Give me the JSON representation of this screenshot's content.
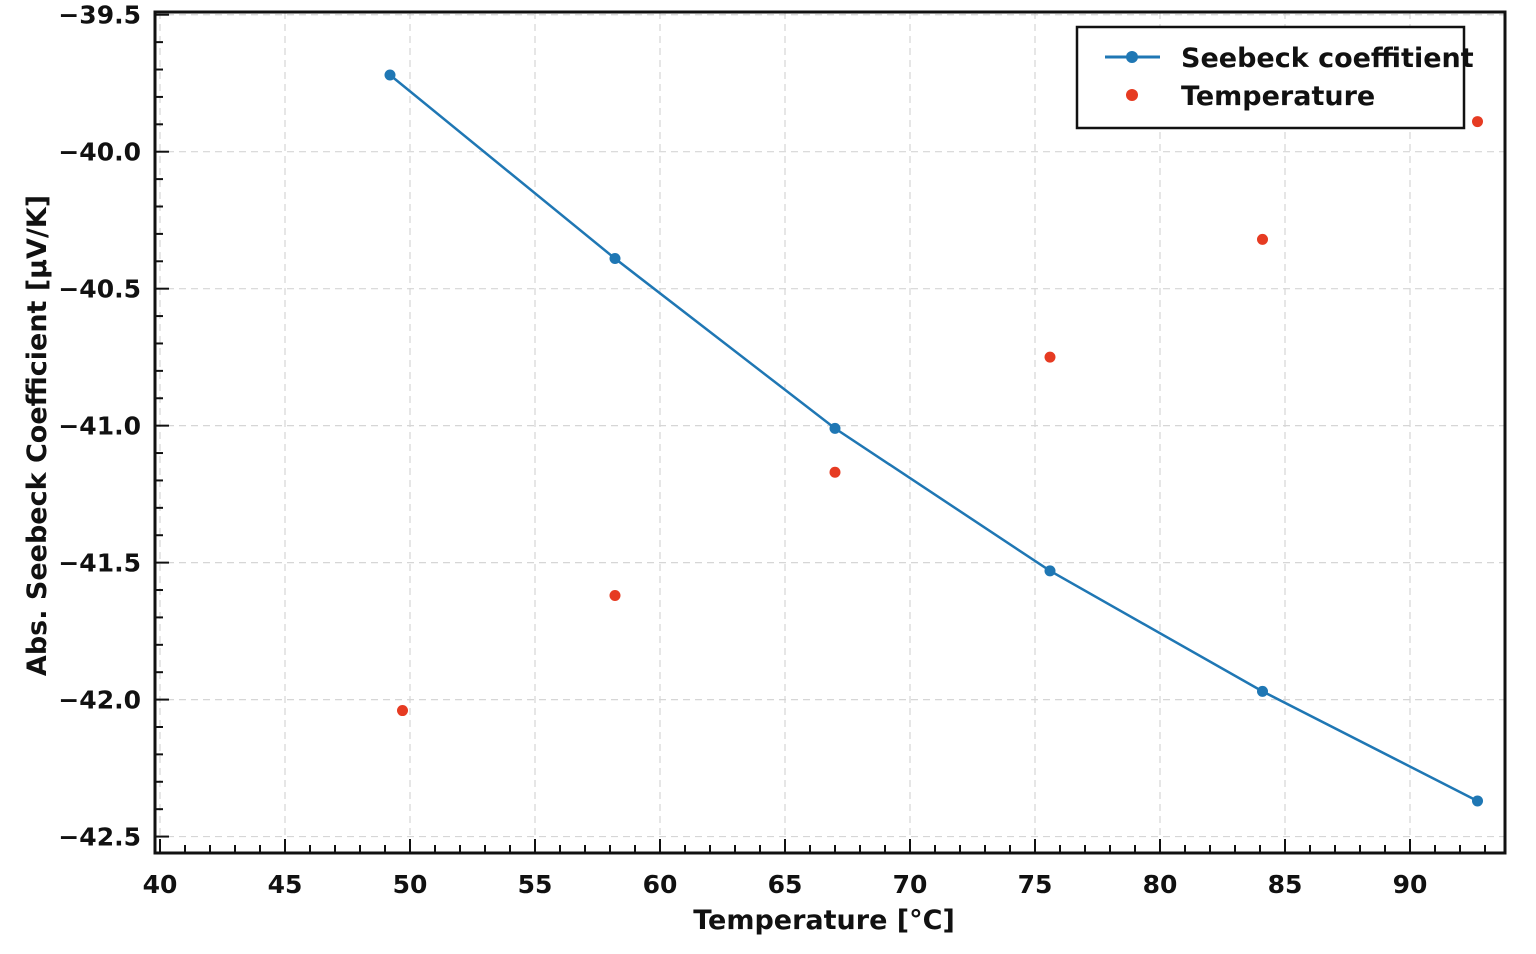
{
  "chart_data": {
    "type": "scatter",
    "title": "",
    "xlabel": "Temperature [°C]",
    "ylabel": "Abs. Seebeck Coefficient [µV/K]",
    "xlim": [
      39.8,
      93.8
    ],
    "ylim": [
      -42.56,
      -39.49
    ],
    "xticks": [
      40,
      45,
      50,
      55,
      60,
      65,
      70,
      75,
      80,
      85,
      90
    ],
    "xtick_labels": [
      "40",
      "45",
      "50",
      "55",
      "60",
      "65",
      "70",
      "75",
      "80",
      "85",
      "90"
    ],
    "yticks": [
      -39.5,
      -40.0,
      -40.5,
      -41.0,
      -41.5,
      -42.0,
      -42.5
    ],
    "ytick_labels": [
      "−39.5",
      "−40.0",
      "−40.5",
      "−41.0",
      "−41.5",
      "−42.0",
      "−42.5"
    ],
    "grid": true,
    "legend_position": "top-right",
    "series": [
      {
        "name": "Seebeck coeffitient",
        "style": "line-marker",
        "color": "#1f77b4",
        "x": [
          49.2,
          58.2,
          67.0,
          75.6,
          84.1,
          92.7
        ],
        "y": [
          -39.72,
          -40.39,
          -41.01,
          -41.53,
          -41.97,
          -42.37
        ]
      },
      {
        "name": "Temperature",
        "style": "marker",
        "color": "#e63b22",
        "x": [
          49.7,
          58.2,
          67.0,
          75.6,
          84.1,
          92.7
        ],
        "y": [
          -42.04,
          -41.62,
          -41.17,
          -40.75,
          -40.32,
          -39.89
        ]
      }
    ]
  }
}
